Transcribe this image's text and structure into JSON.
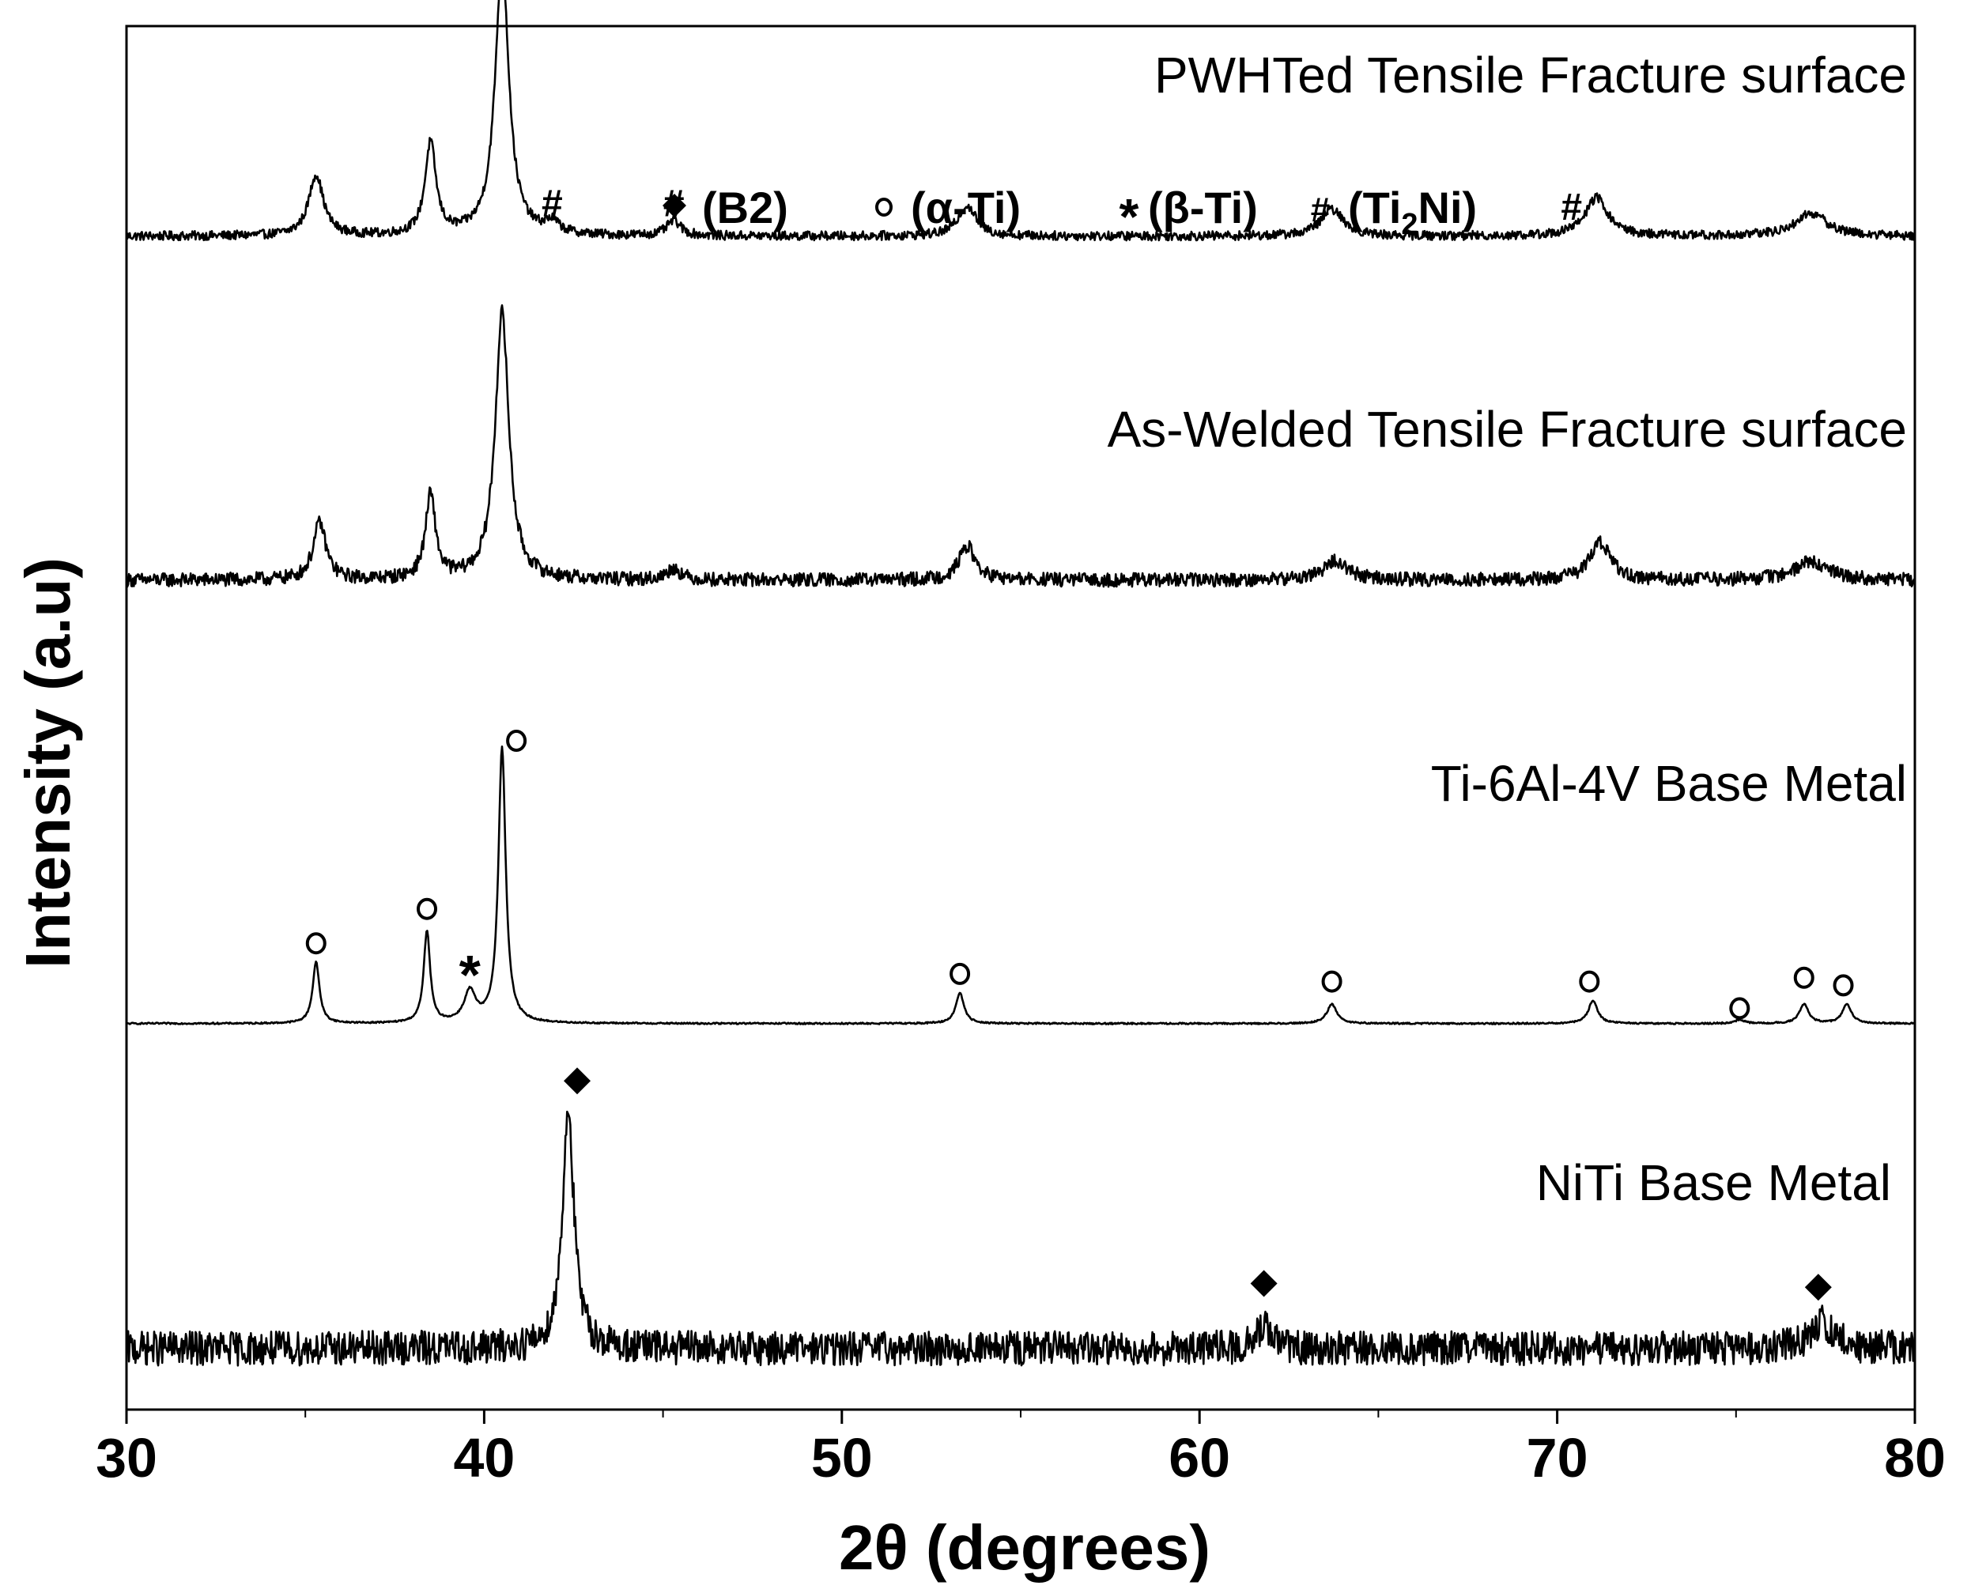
{
  "chart_data": {
    "type": "line",
    "xlabel": "2θ (degrees)",
    "ylabel": "Intensity (a.u)",
    "xlim": [
      30,
      80
    ],
    "xticks": [
      30,
      40,
      50,
      60,
      70,
      80
    ],
    "xtick_labels": [
      "30",
      "40",
      "50",
      "60",
      "70",
      "80"
    ],
    "grid": false,
    "stacked_offsets": true,
    "legend": {
      "placement": "top-center",
      "entries": [
        {
          "symbol": "◆",
          "label": "(B2)",
          "marker": "diamond"
        },
        {
          "symbol": "o",
          "label": "(α-Ti)",
          "marker": "circle"
        },
        {
          "symbol": "*",
          "label": "(β-Ti)",
          "marker": "star"
        },
        {
          "symbol": "#",
          "label": "(Ti",
          "sub": "2",
          "tail": "Ni)",
          "marker": "hash"
        }
      ]
    },
    "series": [
      {
        "name": "PWHTed Tensile Fracture surface",
        "baseline": 3.07,
        "noise": 0.012,
        "peaks": [
          {
            "x": 35.3,
            "h": 0.16,
            "w": 0.32
          },
          {
            "x": 38.5,
            "h": 0.24,
            "w": 0.24
          },
          {
            "x": 40.5,
            "h": 0.72,
            "w": 0.3
          },
          {
            "x": 41.9,
            "h": 0.03,
            "w": 0.3
          },
          {
            "x": 45.3,
            "h": 0.04,
            "w": 0.3
          },
          {
            "x": 53.5,
            "h": 0.08,
            "w": 0.4
          },
          {
            "x": 63.7,
            "h": 0.07,
            "w": 0.5
          },
          {
            "x": 71.1,
            "h": 0.1,
            "w": 0.5
          },
          {
            "x": 77.1,
            "h": 0.06,
            "w": 0.7
          }
        ],
        "markers": [
          {
            "x": 41.9,
            "y": 3.16,
            "symbol": "#"
          },
          {
            "x": 45.3,
            "y": 3.16,
            "symbol": "#"
          },
          {
            "x": 70.4,
            "y": 3.15,
            "symbol": "#"
          }
        ]
      },
      {
        "name": "As-Welded Tensile Fracture surface",
        "baseline": 2.17,
        "noise": 0.018,
        "peaks": [
          {
            "x": 35.4,
            "h": 0.15,
            "w": 0.28
          },
          {
            "x": 38.5,
            "h": 0.22,
            "w": 0.22
          },
          {
            "x": 40.5,
            "h": 0.7,
            "w": 0.3
          },
          {
            "x": 45.3,
            "h": 0.03,
            "w": 0.3
          },
          {
            "x": 53.5,
            "h": 0.09,
            "w": 0.35
          },
          {
            "x": 63.8,
            "h": 0.05,
            "w": 0.55
          },
          {
            "x": 71.2,
            "h": 0.1,
            "w": 0.45
          },
          {
            "x": 77.1,
            "h": 0.05,
            "w": 0.7
          }
        ],
        "markers": []
      },
      {
        "name": "Ti-6Al-4V Base Metal",
        "baseline": 1.01,
        "noise": 0.002,
        "peaks": [
          {
            "x": 35.3,
            "h": 0.16,
            "w": 0.15
          },
          {
            "x": 38.4,
            "h": 0.24,
            "w": 0.14
          },
          {
            "x": 39.6,
            "h": 0.08,
            "w": 0.25
          },
          {
            "x": 40.5,
            "h": 0.72,
            "w": 0.16
          },
          {
            "x": 53.3,
            "h": 0.08,
            "w": 0.18
          },
          {
            "x": 63.7,
            "h": 0.05,
            "w": 0.22
          },
          {
            "x": 71.0,
            "h": 0.06,
            "w": 0.2
          },
          {
            "x": 75.1,
            "h": 0.01,
            "w": 0.2
          },
          {
            "x": 76.9,
            "h": 0.05,
            "w": 0.2
          },
          {
            "x": 78.1,
            "h": 0.05,
            "w": 0.2
          }
        ],
        "markers": [
          {
            "x": 35.3,
            "y": 1.22,
            "symbol": "o"
          },
          {
            "x": 38.4,
            "y": 1.31,
            "symbol": "o"
          },
          {
            "x": 39.6,
            "y": 1.15,
            "symbol": "*"
          },
          {
            "x": 40.9,
            "y": 1.75,
            "symbol": "o"
          },
          {
            "x": 53.3,
            "y": 1.14,
            "symbol": "o"
          },
          {
            "x": 63.7,
            "y": 1.12,
            "symbol": "o"
          },
          {
            "x": 70.9,
            "y": 1.12,
            "symbol": "o"
          },
          {
            "x": 75.1,
            "y": 1.05,
            "symbol": "o"
          },
          {
            "x": 76.9,
            "y": 1.13,
            "symbol": "o"
          },
          {
            "x": 78.0,
            "y": 1.11,
            "symbol": "o"
          }
        ]
      },
      {
        "name": "NiTi Base Metal",
        "baseline": 0.16,
        "noise": 0.045,
        "peaks": [
          {
            "x": 42.35,
            "h": 0.63,
            "w": 0.25
          },
          {
            "x": 61.8,
            "h": 0.06,
            "w": 0.3
          },
          {
            "x": 77.4,
            "h": 0.07,
            "w": 0.5
          }
        ],
        "markers": [
          {
            "x": 42.6,
            "y": 0.86,
            "symbol": "◆"
          },
          {
            "x": 61.8,
            "y": 0.33,
            "symbol": "◆"
          },
          {
            "x": 77.3,
            "y": 0.32,
            "symbol": "◆"
          }
        ]
      }
    ]
  }
}
